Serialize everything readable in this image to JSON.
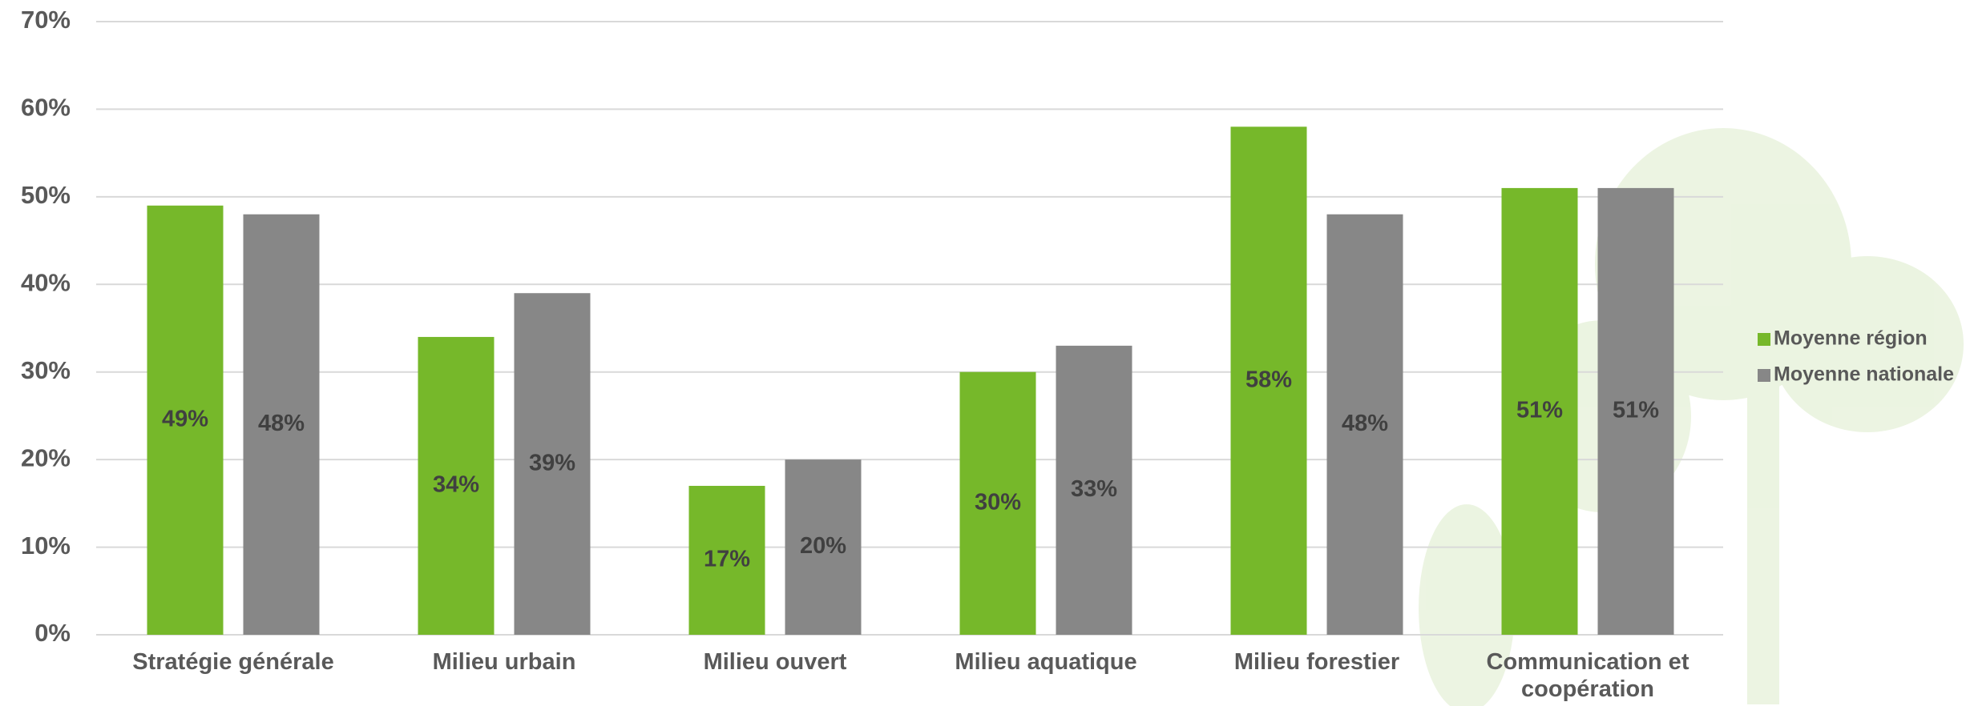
{
  "chart_data": {
    "type": "bar",
    "categories": [
      "Stratégie générale",
      "Milieu urbain",
      "Milieu ouvert",
      "Milieu aquatique",
      "Milieu forestier",
      "Communication et coopération"
    ],
    "series": [
      {
        "name": "Moyenne région",
        "color": "#76b82a",
        "values": [
          49,
          34,
          17,
          30,
          58,
          51
        ],
        "value_labels": [
          "49%",
          "34%",
          "17%",
          "30%",
          "58%",
          "51%"
        ]
      },
      {
        "name": "Moyenne nationale",
        "color": "#878787",
        "values": [
          48,
          39,
          20,
          33,
          48,
          51
        ],
        "value_labels": [
          "48%",
          "39%",
          "20%",
          "33%",
          "48%",
          "51%"
        ]
      }
    ],
    "ylim": [
      0,
      70
    ],
    "yticks": [
      {
        "value": 0,
        "label": "0%"
      },
      {
        "value": 10,
        "label": "10%"
      },
      {
        "value": 20,
        "label": "20%"
      },
      {
        "value": 30,
        "label": "30%"
      },
      {
        "value": 40,
        "label": "40%"
      },
      {
        "value": 50,
        "label": "50%"
      },
      {
        "value": 60,
        "label": "60%"
      },
      {
        "value": 70,
        "label": "70%"
      }
    ],
    "grid": true,
    "legend": "right"
  }
}
